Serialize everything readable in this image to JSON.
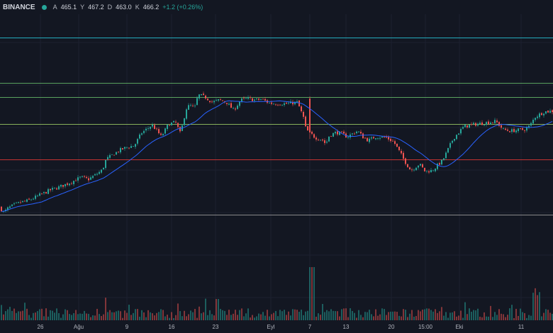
{
  "header": {
    "symbol": "BINANCE",
    "status_color": "#26a69a",
    "open_label": "A",
    "open_value": "465.1",
    "high_label": "Y",
    "high_value": "467.2",
    "low_label": "D",
    "low_value": "463.0",
    "close_label": "K",
    "close_value": "466.2",
    "change": "+1.2 (+0.26%)"
  },
  "colors": {
    "background": "#131722",
    "up": "#26a69a",
    "down": "#ef5350",
    "ma": "#2962ff",
    "level_cyan": "#26c6da",
    "level_green": "#66bb6a",
    "level_lime": "#9ccc65",
    "level_red": "#e53935",
    "level_gray": "#9e9e9e"
  },
  "chart_data": {
    "type": "candlestick",
    "x_ticks": [
      "26",
      "Ağu",
      "9",
      "16",
      "23",
      "Eyl",
      "7",
      "13",
      "20",
      "15:00",
      "Eki",
      "11"
    ],
    "price_path": [
      [
        0,
        380
      ],
      [
        6,
        373
      ],
      [
        12,
        379
      ],
      [
        20,
        383
      ],
      [
        30,
        387
      ],
      [
        40,
        389
      ],
      [
        55,
        396
      ],
      [
        70,
        403
      ],
      [
        85,
        408
      ],
      [
        100,
        414
      ],
      [
        115,
        421
      ],
      [
        125,
        418
      ],
      [
        135,
        424
      ],
      [
        145,
        431
      ],
      [
        150,
        445
      ],
      [
        160,
        452
      ],
      [
        170,
        458
      ],
      [
        180,
        462
      ],
      [
        190,
        464
      ],
      [
        200,
        481
      ],
      [
        215,
        492
      ],
      [
        222,
        484
      ],
      [
        228,
        476
      ],
      [
        238,
        493
      ],
      [
        248,
        496
      ],
      [
        255,
        480
      ],
      [
        263,
        514
      ],
      [
        268,
        519
      ],
      [
        275,
        515
      ],
      [
        280,
        533
      ],
      [
        290,
        530
      ],
      [
        300,
        523
      ],
      [
        310,
        526
      ],
      [
        320,
        523
      ],
      [
        330,
        512
      ],
      [
        340,
        526
      ],
      [
        350,
        528
      ],
      [
        360,
        526
      ],
      [
        370,
        527
      ],
      [
        380,
        522
      ],
      [
        390,
        521
      ],
      [
        405,
        521
      ],
      [
        420,
        523
      ],
      [
        429,
        501
      ],
      [
        432,
        486
      ],
      [
        445,
        475
      ],
      [
        455,
        472
      ],
      [
        460,
        466
      ],
      [
        465,
        478
      ],
      [
        475,
        482
      ],
      [
        483,
        480
      ],
      [
        490,
        476
      ],
      [
        505,
        484
      ],
      [
        512,
        476
      ],
      [
        520,
        471
      ],
      [
        530,
        476
      ],
      [
        545,
        475
      ],
      [
        556,
        469
      ],
      [
        565,
        454
      ],
      [
        570,
        445
      ],
      [
        580,
        430
      ],
      [
        592,
        439
      ],
      [
        600,
        429
      ],
      [
        610,
        430
      ],
      [
        625,
        444
      ],
      [
        640,
        474
      ],
      [
        655,
        490
      ],
      [
        670,
        493
      ],
      [
        685,
        495
      ],
      [
        700,
        497
      ],
      [
        710,
        486
      ],
      [
        720,
        484
      ],
      [
        730,
        485
      ],
      [
        741,
        486
      ],
      [
        748,
        491
      ],
      [
        755,
        503
      ],
      [
        768,
        510
      ],
      [
        780,
        511
      ]
    ],
    "price_levels": [
      {
        "price": 611,
        "color": "level_cyan"
      },
      {
        "price": 549,
        "color": "level_green"
      },
      {
        "price": 530,
        "color": "level_green"
      },
      {
        "price": 493,
        "color": "level_lime"
      },
      {
        "price": 445,
        "color": "level_red"
      },
      {
        "price": 370,
        "color": "level_gray"
      }
    ],
    "ma_length": 20,
    "y_range": [
      370,
      611
    ]
  }
}
